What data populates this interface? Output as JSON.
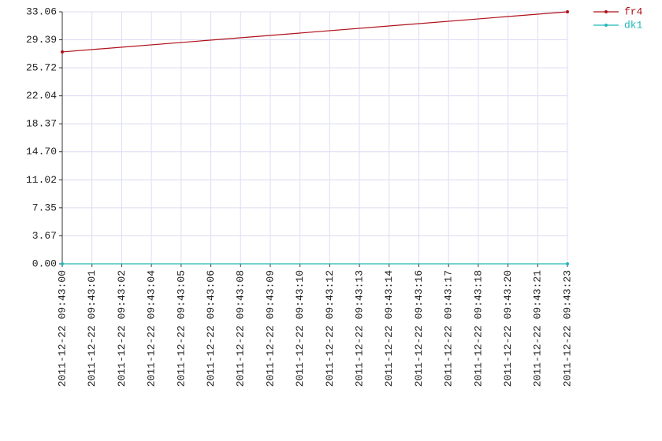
{
  "chart_data": {
    "type": "line",
    "x": [
      "2011-12-22 09:43:00",
      "2011-12-22 09:43:23"
    ],
    "series": [
      {
        "name": "fr4",
        "color": "#b0101a",
        "values": [
          27.8,
          33.06
        ]
      },
      {
        "name": "dk1",
        "color": "#20b8b8",
        "values": [
          0,
          0
        ]
      }
    ],
    "xlim": [
      "2011-12-22 09:43:00",
      "2011-12-22 09:43:23"
    ],
    "xticks": [
      {
        "value": "2011-12-22 09:43:00",
        "label": "2011-12-22 09:43:00"
      },
      {
        "value": "2011-12-22 09:43:01.353",
        "label": "2011-12-22 09:43:01"
      },
      {
        "value": "2011-12-22 09:43:02.706",
        "label": "2011-12-22 09:43:02"
      },
      {
        "value": "2011-12-22 09:43:04.059",
        "label": "2011-12-22 09:43:04"
      },
      {
        "value": "2011-12-22 09:43:05.412",
        "label": "2011-12-22 09:43:05"
      },
      {
        "value": "2011-12-22 09:43:06.765",
        "label": "2011-12-22 09:43:06"
      },
      {
        "value": "2011-12-22 09:43:08.118",
        "label": "2011-12-22 09:43:08"
      },
      {
        "value": "2011-12-22 09:43:09.471",
        "label": "2011-12-22 09:43:09"
      },
      {
        "value": "2011-12-22 09:43:10.824",
        "label": "2011-12-22 09:43:10"
      },
      {
        "value": "2011-12-22 09:43:12.176",
        "label": "2011-12-22 09:43:12"
      },
      {
        "value": "2011-12-22 09:43:13.529",
        "label": "2011-12-22 09:43:13"
      },
      {
        "value": "2011-12-22 09:43:14.882",
        "label": "2011-12-22 09:43:14"
      },
      {
        "value": "2011-12-22 09:43:16.235",
        "label": "2011-12-22 09:43:16"
      },
      {
        "value": "2011-12-22 09:43:17.588",
        "label": "2011-12-22 09:43:17"
      },
      {
        "value": "2011-12-22 09:43:18.941",
        "label": "2011-12-22 09:43:18"
      },
      {
        "value": "2011-12-22 09:43:20.294",
        "label": "2011-12-22 09:43:20"
      },
      {
        "value": "2011-12-22 09:43:21.647",
        "label": "2011-12-22 09:43:21"
      },
      {
        "value": "2011-12-22 09:43:23",
        "label": "2011-12-22 09:43:23"
      }
    ],
    "ylim": [
      0,
      33.06
    ],
    "yticks": [
      {
        "value": 0,
        "label": "0.00"
      },
      3.67,
      7.35,
      11.02,
      {
        "value": 14.7,
        "label": "14.70"
      },
      18.37,
      22.04,
      25.72,
      29.39,
      33.06
    ],
    "grid": true,
    "legend": "top-right"
  }
}
